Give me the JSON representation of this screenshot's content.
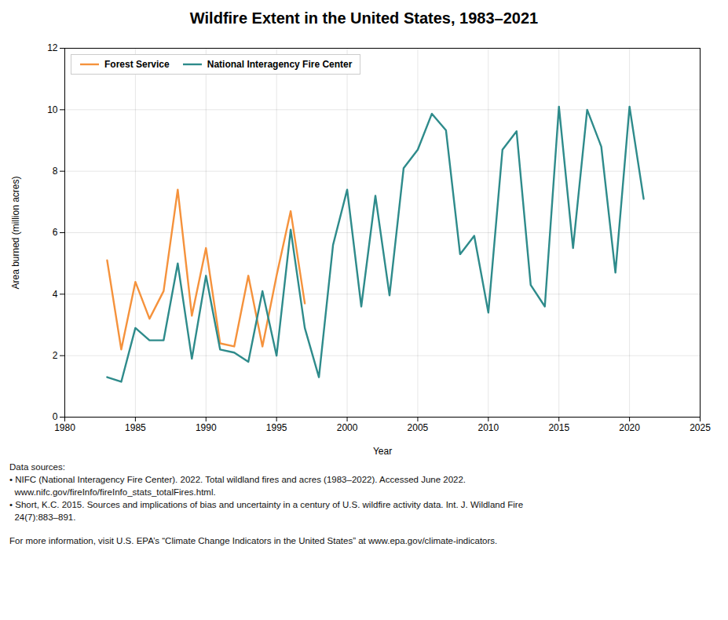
{
  "chart_data": {
    "type": "line",
    "title": "Wildfire Extent in the United States, 1983–2021",
    "x_label": "Year",
    "y_label": "Area burned (million acres)",
    "x": [
      1983,
      1984,
      1985,
      1986,
      1987,
      1988,
      1989,
      1990,
      1991,
      1992,
      1993,
      1994,
      1995,
      1996,
      1997,
      1998,
      1999,
      2000,
      2001,
      2002,
      2003,
      2004,
      2005,
      2006,
      2007,
      2008,
      2009,
      2010,
      2011,
      2012,
      2013,
      2014,
      2015,
      2016,
      2017,
      2018,
      2019,
      2020,
      2021
    ],
    "series": [
      {
        "name": "Forest Service",
        "color": "#f5923c",
        "values": [
          5.1,
          2.2,
          4.4,
          3.2,
          4.1,
          7.4,
          3.3,
          5.5,
          2.4,
          2.3,
          4.6,
          2.3,
          4.6,
          6.7,
          3.7,
          null,
          null,
          null,
          null,
          null,
          null,
          null,
          null,
          null,
          null,
          null,
          null,
          null,
          null,
          null,
          null,
          null,
          null,
          null,
          null,
          null,
          null,
          null,
          null
        ]
      },
      {
        "name": "National Interagency Fire Center",
        "color": "#2e8b8b",
        "values": [
          1.3,
          1.15,
          2.9,
          2.5,
          2.5,
          5.0,
          1.9,
          4.6,
          2.2,
          2.1,
          1.8,
          4.1,
          2.0,
          6.1,
          2.9,
          1.3,
          5.6,
          7.4,
          3.6,
          7.2,
          3.96,
          8.1,
          8.7,
          9.87,
          9.33,
          5.3,
          5.9,
          3.4,
          8.7,
          9.3,
          4.3,
          3.6,
          10.1,
          5.5,
          10.0,
          8.8,
          4.7,
          10.1,
          7.1
        ]
      }
    ],
    "xlim": [
      1980,
      2025
    ],
    "ylim": [
      0,
      12
    ],
    "xticks": [
      1980,
      1985,
      1990,
      1995,
      2000,
      2005,
      2010,
      2015,
      2020,
      2025
    ],
    "yticks": [
      0,
      2,
      4,
      6,
      8,
      10,
      12
    ],
    "grid": true,
    "legend": "upper left",
    "annotations": [
      "Data sources:",
      "• NIFC (National Interagency Fire Center). 2022. Total wildland fires and acres (1983–2022). Accessed June 2022.",
      "  www.nifc.gov/fireInfo/fireInfo_stats_totalFires.html.",
      "• Short, K.C. 2015. Sources and implications of bias and uncertainty in a century of U.S. wildfire activity data. Int. J. Wildland Fire",
      "  24(7):883–891.",
      "For more information, visit U.S. EPA’s “Climate Change Indicators in the United States” at www.epa.gov/climate-indicators."
    ]
  }
}
